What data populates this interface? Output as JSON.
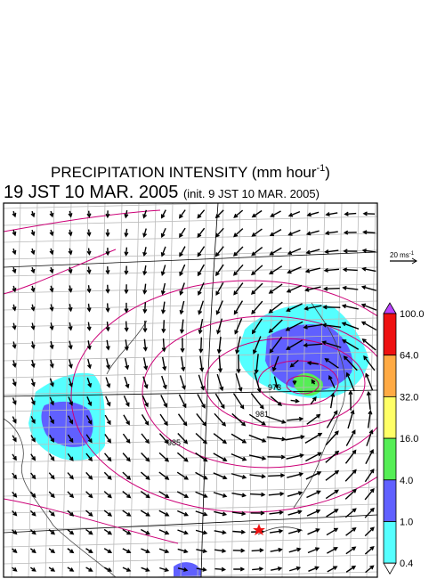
{
  "header": {
    "title": "PRECIPITATION INTENSITY (mm hour",
    "title_exponent": "-1",
    "title_close": ")",
    "valid_time": "19 JST 10 MAR. 2005",
    "init_time": "(init. 9 JST 10 MAR. 2005)"
  },
  "wind_scale": {
    "label": "20 ms",
    "exponent": "-1"
  },
  "colorbar": {
    "labels": [
      "100.0",
      "64.0",
      "32.0",
      "16.0",
      "4.0",
      "1.0",
      "0.4"
    ],
    "colors": [
      "#ee1111",
      "#ffaa44",
      "#ffff66",
      "#55ee55",
      "#6060ff",
      "#55ffff"
    ],
    "over_color": "#bb44ff",
    "under_color": "#ffffff"
  },
  "contour_labels": [
    "973",
    "981",
    "985"
  ]
}
